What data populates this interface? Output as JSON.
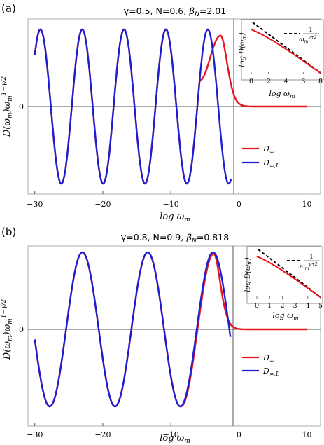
{
  "colors": {
    "d_inf": "#e8141e",
    "d_inf_L": "#1e1ed2",
    "axis": "#555555",
    "inset_line": "#e8141e",
    "inset_asymptote": "#000000"
  },
  "chart_data": [
    {
      "panel_label": "(a)",
      "type": "line",
      "title": "γ=0.5, N=0.6, β_N=2.01",
      "title_parts": {
        "gamma": "γ=0.5, N=0.6, ",
        "beta": "β",
        "beta_sub": "N",
        "beta_val": "=2.01"
      },
      "xlabel": "log ω_m",
      "ylabel": "D(ω_m)ω_m^{1−γ/2}",
      "xlim": [
        -31,
        12
      ],
      "ylim": [
        -1.15,
        1.15
      ],
      "xticks": [
        -30,
        -20,
        -10,
        0,
        10
      ],
      "xtick_labels": [
        "−30",
        "−20",
        "−10",
        "0",
        "10"
      ],
      "ytick_labels": [
        "0"
      ],
      "oscillation": {
        "period": 6.15,
        "phase_ref_x": -26.1,
        "amplitude": 1.0
      },
      "d_inf_tail": {
        "peak_x": -2.7,
        "peak_y": 0.92,
        "decay_end_x": 10
      },
      "d_inf_L_end": {
        "x": -1.1,
        "y": -0.63
      },
      "legend": [
        {
          "label": "D∞",
          "color_key": "d_inf"
        },
        {
          "label": "D∞,L",
          "color_key": "d_inf_L"
        }
      ],
      "legend_placement": "right-middle",
      "inset": {
        "xlabel": "log ω_m",
        "ylabel": "log D(ω_m)",
        "xlim": [
          0,
          8
        ],
        "xticks": [
          0,
          2,
          4,
          6,
          8
        ],
        "xtick_labels": [
          "0",
          "2",
          "4",
          "6",
          "8"
        ],
        "legend_label": "1 / ω_m^{γ+2}",
        "legend_num": "1",
        "legend_den": "ω",
        "legend_den_sub": "m",
        "legend_den_sup": "γ+2"
      }
    },
    {
      "panel_label": "(b)",
      "type": "line",
      "title": "γ=0.8, N=0.9, β_N=0.818",
      "title_parts": {
        "gamma": "γ=0.8, N=0.9, ",
        "beta": "β",
        "beta_sub": "N",
        "beta_val": "=0.818"
      },
      "xlabel": "log ω_m",
      "ylabel": "D(ω_m)ω_m^{1−γ/2}",
      "xlim": [
        -31,
        12
      ],
      "ylim": [
        -1.15,
        1.15
      ],
      "xticks": [
        -30,
        -20,
        -10,
        0,
        10
      ],
      "xtick_labels": [
        "−30",
        "−20",
        "−10",
        "0",
        "10"
      ],
      "ytick_labels": [
        "0"
      ],
      "oscillation": {
        "period": 9.6,
        "phase_ref_x": -27.8,
        "amplitude": 1.0
      },
      "d_inf_tail": {
        "peak_x": -3.7,
        "peak_y": 0.98,
        "decay_end_x": 10
      },
      "d_inf_L_end": {
        "x": -1.2,
        "y": 0.25
      },
      "legend": [
        {
          "label": "D∞",
          "color_key": "d_inf"
        },
        {
          "label": "D∞,L",
          "color_key": "d_inf_L"
        }
      ],
      "legend_placement": "right-middle",
      "inset": {
        "xlabel": "log ω_m",
        "ylabel": "log D(ω_m)",
        "xlim": [
          0,
          5
        ],
        "xticks": [
          0,
          1,
          2,
          3,
          4,
          5
        ],
        "xtick_labels": [
          "0",
          "1",
          "2",
          "3",
          "4",
          "5"
        ],
        "legend_label": "1 / ω_m^{γ+2}",
        "legend_num": "1",
        "legend_den": "ω",
        "legend_den_sub": "m",
        "legend_den_sup": "γ+2"
      }
    }
  ]
}
